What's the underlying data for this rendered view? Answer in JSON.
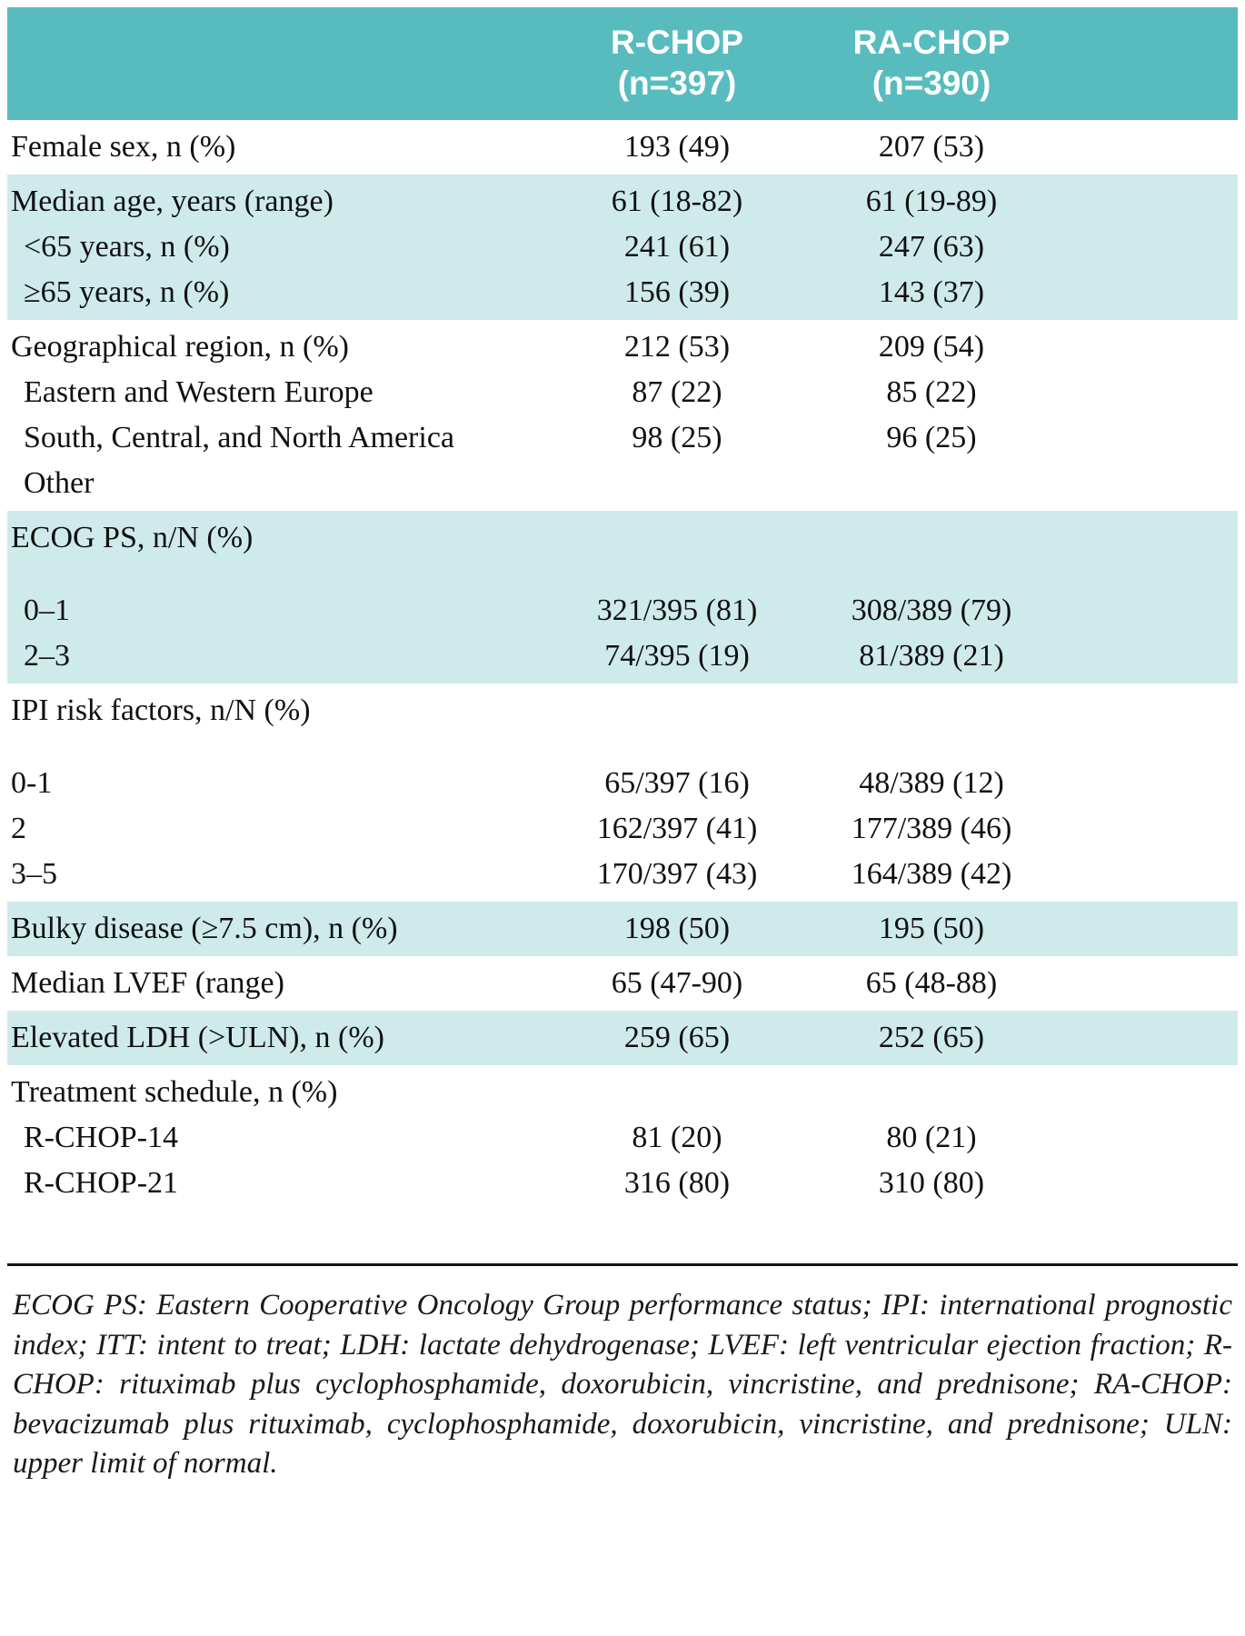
{
  "colors": {
    "header_bg": "#58bcbe",
    "header_text": "#ffffff",
    "band_teal": "#cfeaea",
    "band_white": "#ffffff",
    "text": "#111111"
  },
  "header": {
    "col_r_chop": {
      "name": "R-CHOP",
      "n": "(n=397)"
    },
    "col_ra_chop": {
      "name": "RA-CHOP",
      "n": "(n=390)"
    }
  },
  "groups": [
    {
      "shade": "white",
      "rows": [
        {
          "label": "Female sex, n (%)",
          "c1": "193 (49)",
          "c2": "207 (53)",
          "indent": false,
          "gap": false
        }
      ]
    },
    {
      "shade": "teal",
      "rows": [
        {
          "label": "Median age, years (range)",
          "c1": "61 (18-82)",
          "c2": "61 (19-89)",
          "indent": false,
          "gap": false
        },
        {
          "label": "<65 years, n (%)",
          "c1": "241 (61)",
          "c2": "247 (63)",
          "indent": true,
          "gap": false
        },
        {
          "label": "≥65 years, n (%)",
          "c1": "156 (39)",
          "c2": "143 (37)",
          "indent": true,
          "gap": false
        }
      ]
    },
    {
      "shade": "white",
      "rows": [
        {
          "label": "Geographical region, n (%)",
          "c1": "212 (53)",
          "c2": "209 (54)",
          "indent": false,
          "gap": false
        },
        {
          "label": "Eastern and Western Europe",
          "c1": "87 (22)",
          "c2": "85 (22)",
          "indent": true,
          "gap": false
        },
        {
          "label": "South, Central, and North America",
          "c1": "98 (25)",
          "c2": "96 (25)",
          "indent": true,
          "gap": false
        },
        {
          "label": "Other",
          "c1": "",
          "c2": "",
          "indent": true,
          "gap": false
        }
      ]
    },
    {
      "shade": "teal",
      "rows": [
        {
          "label": "ECOG PS, n/N (%)",
          "c1": "",
          "c2": "",
          "indent": false,
          "gap": true
        },
        {
          "label": "0–1",
          "c1": "321/395 (81)",
          "c2": "308/389 (79)",
          "indent": true,
          "gap": false
        },
        {
          "label": "2–3",
          "c1": "74/395 (19)",
          "c2": "81/389 (21)",
          "indent": true,
          "gap": false
        }
      ]
    },
    {
      "shade": "white",
      "rows": [
        {
          "label": "IPI risk factors, n/N (%)",
          "c1": "",
          "c2": "",
          "indent": false,
          "gap": true
        },
        {
          "label": "0-1",
          "c1": "65/397 (16)",
          "c2": "48/389 (12)",
          "indent": false,
          "gap": false
        },
        {
          "label": "2",
          "c1": "162/397 (41)",
          "c2": "177/389 (46)",
          "indent": false,
          "gap": false
        },
        {
          "label": "3–5",
          "c1": "170/397 (43)",
          "c2": "164/389 (42)",
          "indent": false,
          "gap": false
        }
      ]
    },
    {
      "shade": "teal",
      "rows": [
        {
          "label": "Bulky disease (≥7.5 cm), n (%)",
          "c1": "198 (50)",
          "c2": "195 (50)",
          "indent": false,
          "gap": false
        }
      ]
    },
    {
      "shade": "white",
      "rows": [
        {
          "label": "Median LVEF (range)",
          "c1": "65 (47-90)",
          "c2": "65 (48-88)",
          "indent": false,
          "gap": false
        }
      ]
    },
    {
      "shade": "teal",
      "rows": [
        {
          "label": "Elevated LDH (>ULN), n (%)",
          "c1": "259 (65)",
          "c2": "252 (65)",
          "indent": false,
          "gap": false
        }
      ]
    },
    {
      "shade": "white",
      "rows": [
        {
          "label": "Treatment schedule, n (%)",
          "c1": "",
          "c2": "",
          "indent": false,
          "gap": false
        },
        {
          "label": "R-CHOP-14",
          "c1": "81 (20)",
          "c2": "80 (21)",
          "indent": true,
          "gap": false
        },
        {
          "label": "R-CHOP-21",
          "c1": "316 (80)",
          "c2": "310 (80)",
          "indent": true,
          "gap": false
        }
      ]
    }
  ],
  "footnote": "ECOG PS: Eastern Cooperative Oncology Group performance status; IPI: international prognostic index; ITT: intent to treat; LDH: lactate dehydrogenase; LVEF: left ventricular ejection fraction; R-CHOP: rituximab plus cyclophosphamide, doxorubicin, vincristine, and prednisone; RA-CHOP: bevacizumab plus rituximab, cyclophosphamide, doxorubicin, vincristine, and prednisone; ULN: upper limit of normal."
}
